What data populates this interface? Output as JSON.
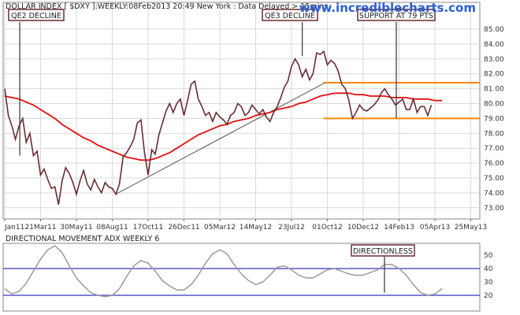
{
  "chart_data": [
    {
      "type": "line",
      "title": "DOLLAR INDEX [ $DXY ]:WEEKLY:08Feb2013 20:49 New York : Data Delayed > 15mins",
      "watermark": "www.incrediblecharts.com",
      "x_ticks": [
        "Jan11",
        "21Mar11",
        "30May11",
        "08Aug11",
        "17Oct11",
        "26Dec11",
        "05Mar12",
        "14May12",
        "23Jul12",
        "01Oct12",
        "10Dec12",
        "14Feb13",
        "05Apr13",
        "25May13"
      ],
      "y_ticks": [
        "73.00",
        "74.00",
        "75.00",
        "76.00",
        "77.00",
        "78.00",
        "79.00",
        "80.00",
        "81.00",
        "82.00",
        "83.00",
        "84.00",
        "85.00"
      ],
      "ylim": [
        72.4,
        85.8
      ],
      "grid": true,
      "series": [
        {
          "values": [
            81.0,
            79.2,
            78.5,
            77.6,
            78.5,
            79.0,
            77.4,
            78.0,
            76.5,
            76.8,
            75.2,
            75.6,
            74.9,
            74.3,
            74.4,
            73.2,
            74.8,
            75.7,
            75.3,
            74.7,
            73.9,
            74.8,
            75.5,
            74.6,
            74.2,
            74.9,
            74.4,
            74.0,
            74.7,
            74.4,
            74.3,
            73.9,
            74.6,
            76.4,
            76.7,
            77.1,
            77.6,
            78.7,
            78.9,
            76.7,
            75.2,
            76.9,
            76.6,
            77.9,
            78.7,
            79.5,
            80.0,
            79.4,
            80.0,
            80.3,
            79.2,
            80.2,
            81.3,
            81.5,
            80.3,
            79.8,
            79.2,
            79.4,
            78.8,
            79.4,
            79.1,
            78.9,
            78.6,
            79.2,
            79.4,
            80.0,
            79.8,
            79.2,
            79.4,
            79.9,
            79.6,
            79.3,
            79.6,
            79.1,
            78.8,
            79.4,
            79.8,
            80.4,
            81.1,
            81.5,
            82.5,
            83.0,
            82.6,
            81.8,
            82.3,
            81.6,
            82.0,
            83.4,
            83.3,
            83.5,
            82.6,
            82.9,
            82.7,
            82.2,
            81.3,
            81.0,
            80.2,
            79.0,
            79.4,
            79.9,
            79.6,
            79.5,
            79.7,
            79.9,
            80.2,
            80.7,
            81.0,
            80.6,
            80.3,
            79.9,
            80.1,
            80.3,
            79.6,
            79.6,
            80.3,
            79.4,
            79.8,
            79.8,
            79.2,
            79.9
          ]
        },
        {
          "values": [
            80.5,
            80.4,
            80.3,
            80.1,
            79.9,
            79.6,
            79.3,
            79.0,
            78.6,
            78.3,
            78.0,
            77.7,
            77.5,
            77.2,
            77.0,
            76.8,
            76.6,
            76.4,
            76.3,
            76.2,
            76.2,
            76.3,
            76.5,
            76.7,
            77.0,
            77.3,
            77.6,
            77.9,
            78.1,
            78.3,
            78.5,
            78.6,
            78.8,
            78.9,
            79.0,
            79.2,
            79.3,
            79.4,
            79.6,
            79.7,
            79.8,
            80.0,
            80.1,
            80.3,
            80.5,
            80.6,
            80.7,
            80.7,
            80.7,
            80.6,
            80.6,
            80.5,
            80.5,
            80.5,
            80.4,
            80.4,
            80.4,
            80.3,
            80.3,
            80.3,
            80.2,
            80.2
          ]
        }
      ],
      "annotations": [
        {
          "label": "QE2 DECLINE"
        },
        {
          "label": "QE3 DECLINE"
        },
        {
          "label": "SUPPORT AT 79 PTS"
        }
      ],
      "trendline": {
        "from": [
          "08Aug11",
          73.9
        ],
        "to": [
          "01Oct12",
          81.4
        ]
      },
      "channel": {
        "upper": 81.4,
        "lower": 79.0,
        "color": "#ff8800"
      }
    },
    {
      "type": "line",
      "title": "DIRECTIONAL MOVEMENT ADX WEEKLY 6",
      "y_ticks": [
        "20",
        "30",
        "40",
        "50"
      ],
      "ylim": [
        14,
        58
      ],
      "reference_lines": [
        20,
        40
      ],
      "series": [
        {
          "values": [
            25,
            21,
            23,
            29,
            38,
            47,
            54,
            57,
            52,
            42,
            33,
            27,
            22,
            20,
            19,
            20,
            25,
            34,
            42,
            46,
            44,
            38,
            31,
            27,
            24,
            24,
            28,
            35,
            44,
            51,
            54,
            51,
            43,
            36,
            31,
            28,
            30,
            35,
            41,
            42,
            39,
            35,
            33,
            33,
            36,
            39,
            40,
            38,
            36,
            35,
            35,
            37,
            39,
            43,
            43,
            40,
            35,
            28,
            22,
            20,
            21,
            25
          ]
        }
      ],
      "annotations": [
        {
          "label": "DIRECTIONLESS"
        }
      ]
    }
  ]
}
